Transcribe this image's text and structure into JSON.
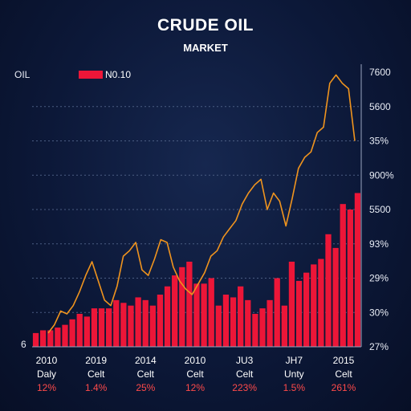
{
  "header": {
    "title": "CRUDE OIL",
    "subtitle": "MARKET"
  },
  "chart_data": {
    "type": "bar+line",
    "series_label": "OIL",
    "legend": {
      "label": "N0.10",
      "color": "#ec1638"
    },
    "origin_label": "6",
    "right_axis_labels": [
      "7600",
      "5600",
      "35%",
      "900%",
      "5500",
      "93%",
      "29%",
      "30%",
      "27%"
    ],
    "x_groups": [
      {
        "year": "2010",
        "label": "Daly",
        "pct": "12%"
      },
      {
        "year": "2019",
        "label": "Celt",
        "pct": "1.4%"
      },
      {
        "year": "2014",
        "label": "Celt",
        "pct": "25%"
      },
      {
        "year": "2010",
        "label": "Celt",
        "pct": "12%"
      },
      {
        "year": "JU3",
        "label": "Celt",
        "pct": "223%"
      },
      {
        "year": "JH7",
        "label": "Unty",
        "pct": "1.5%"
      },
      {
        "year": "2015",
        "label": "Celt",
        "pct": "261%"
      }
    ],
    "ylim": [
      0,
      100
    ],
    "bars": [
      5,
      6,
      6,
      7,
      8,
      10,
      12,
      11,
      14,
      14,
      14,
      17,
      16,
      15,
      18,
      17,
      15,
      19,
      22,
      26,
      29,
      31,
      23,
      23,
      25,
      15,
      19,
      18,
      22,
      17,
      12,
      14,
      17,
      25,
      15,
      31,
      24,
      27,
      30,
      32,
      41,
      36,
      52,
      50,
      56
    ],
    "line": [
      5,
      8,
      13,
      12,
      15,
      20,
      26,
      31,
      24,
      17,
      15,
      22,
      33,
      35,
      38,
      28,
      26,
      32,
      39,
      38,
      29,
      24,
      21,
      19,
      23,
      27,
      33,
      35,
      40,
      43,
      46,
      52,
      56,
      59,
      61,
      50,
      56,
      53,
      44,
      54,
      65,
      69,
      71,
      78,
      80,
      96,
      99,
      96,
      94,
      75
    ],
    "grid": true,
    "colors": {
      "bar": "#ec1638",
      "line": "#f0941e",
      "grid": "#4b5d82",
      "axis": "#9aa6c0"
    }
  }
}
